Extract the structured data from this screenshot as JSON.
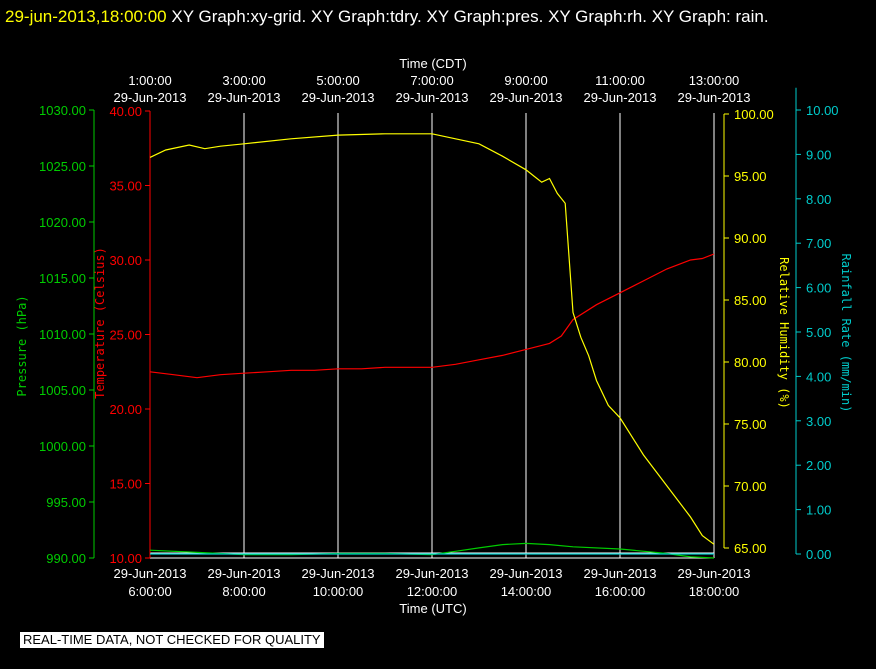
{
  "title": {
    "timestamp": "29-jun-2013,18:00:00",
    "text": "XY Graph:xy-grid.  XY Graph:tdry.  XY Graph:pres.  XY Graph:rh.  XY Graph: rain."
  },
  "notice": "REAL-TIME DATA, NOT CHECKED FOR QUALITY",
  "colors": {
    "pressure": "#00cc00",
    "temperature": "#ff0000",
    "humidity": "#ffff00",
    "rain": "#00cccc",
    "grid": "#ffffff",
    "background": "#000000"
  },
  "chart_data": {
    "type": "line",
    "top_axis": {
      "label": "Time (CDT)",
      "ticks": [
        {
          "time": "1:00:00",
          "date": "29-Jun-2013"
        },
        {
          "time": "3:00:00",
          "date": "29-Jun-2013"
        },
        {
          "time": "5:00:00",
          "date": "29-Jun-2013"
        },
        {
          "time": "7:00:00",
          "date": "29-Jun-2013"
        },
        {
          "time": "9:00:00",
          "date": "29-Jun-2013"
        },
        {
          "time": "11:00:00",
          "date": "29-Jun-2013"
        },
        {
          "time": "13:00:00",
          "date": "29-Jun-2013"
        }
      ]
    },
    "bottom_axis": {
      "label": "Time (UTC)",
      "xlim": [
        "29-Jun-2013 06:00:00",
        "29-Jun-2013 18:00:00"
      ],
      "ticks": [
        {
          "date": "29-Jun-2013",
          "time": "6:00:00"
        },
        {
          "date": "29-Jun-2013",
          "time": "8:00:00"
        },
        {
          "date": "29-Jun-2013",
          "time": "10:00:00"
        },
        {
          "date": "29-Jun-2013",
          "time": "12:00:00"
        },
        {
          "date": "29-Jun-2013",
          "time": "14:00:00"
        },
        {
          "date": "29-Jun-2013",
          "time": "16:00:00"
        },
        {
          "date": "29-Jun-2013",
          "time": "18:00:00"
        }
      ]
    },
    "y_axes": {
      "pressure": {
        "label": "Pressure (hPa)",
        "ylim": [
          990,
          1030
        ],
        "ticks": [
          "1030.00",
          "1025.00",
          "1020.00",
          "1015.00",
          "1010.00",
          "1005.00",
          "1000.00",
          "995.00",
          "990.00"
        ]
      },
      "temperature": {
        "label": "Temperature (Celsius)",
        "ylim": [
          10,
          40
        ],
        "ticks": [
          "40.00",
          "35.00",
          "30.00",
          "25.00",
          "20.00",
          "15.00",
          "10.00"
        ]
      },
      "humidity": {
        "label": "Relative Humidity (%)",
        "ylim": [
          65,
          100
        ],
        "ticks": [
          "100.00",
          "95.00",
          "90.00",
          "85.00",
          "80.00",
          "75.00",
          "70.00",
          "65.00"
        ]
      },
      "rain": {
        "label": "Rainfall Rate (mm/min)",
        "ylim": [
          0,
          10.5
        ],
        "ticks": [
          "10.00",
          "9.00",
          "8.00",
          "7.00",
          "6.00",
          "5.00",
          "4.00",
          "3.00",
          "2.00",
          "1.00",
          "0.00"
        ]
      }
    },
    "grid": true,
    "series": [
      {
        "key": "temperature",
        "x": [
          "06:00",
          "06:30",
          "07:00",
          "07:30",
          "08:00",
          "08:30",
          "09:00",
          "09:30",
          "10:00",
          "10:30",
          "11:00",
          "11:30",
          "12:00",
          "12:30",
          "13:00",
          "13:30",
          "14:00",
          "14:30",
          "14:45",
          "15:00",
          "15:30",
          "16:00",
          "16:30",
          "17:00",
          "17:30",
          "17:45",
          "18:00"
        ],
        "values": [
          22.5,
          22.3,
          22.1,
          22.3,
          22.4,
          22.5,
          22.6,
          22.6,
          22.7,
          22.7,
          22.8,
          22.8,
          22.8,
          23.0,
          23.3,
          23.6,
          24.0,
          24.4,
          24.9,
          26.0,
          27.0,
          27.8,
          28.6,
          29.4,
          30.0,
          30.1,
          30.4
        ]
      },
      {
        "key": "pressure",
        "x": [
          "06:00",
          "07:00",
          "08:00",
          "09:00",
          "10:00",
          "11:00",
          "12:00",
          "12:30",
          "13:00",
          "13:30",
          "14:00",
          "14:30",
          "15:00",
          "16:00",
          "17:00",
          "17:30",
          "18:00"
        ],
        "values": [
          990.7,
          990.5,
          990.3,
          990.3,
          990.4,
          990.4,
          990.3,
          990.6,
          990.9,
          991.2,
          991.3,
          991.2,
          991.0,
          990.8,
          990.4,
          990.1,
          990.0
        ]
      },
      {
        "key": "humidity",
        "x": [
          "06:00",
          "06:20",
          "06:50",
          "07:10",
          "07:30",
          "08:00",
          "09:00",
          "10:00",
          "11:00",
          "12:00",
          "12:30",
          "13:00",
          "13:30",
          "14:00",
          "14:10",
          "14:20",
          "14:30",
          "14:40",
          "14:50",
          "15:00",
          "15:10",
          "15:20",
          "15:30",
          "15:45",
          "16:00",
          "16:30",
          "17:00",
          "17:30",
          "17:45",
          "18:00"
        ],
        "values": [
          96.5,
          97.1,
          97.5,
          97.2,
          97.4,
          97.6,
          98.0,
          98.3,
          98.4,
          98.4,
          98.0,
          97.6,
          96.6,
          95.5,
          95.0,
          94.5,
          94.8,
          93.6,
          92.8,
          84.0,
          82.0,
          80.5,
          78.5,
          76.5,
          75.5,
          72.5,
          70.0,
          67.5,
          66.0,
          65.3
        ]
      },
      {
        "key": "rain",
        "x": [
          "06:00",
          "18:00"
        ],
        "values": [
          0.0,
          0.0
        ]
      }
    ]
  }
}
